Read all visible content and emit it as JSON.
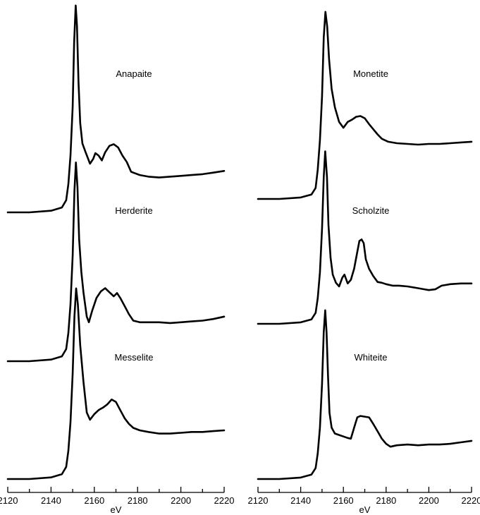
{
  "chart_data": [
    {
      "type": "line",
      "xlabel": "eV",
      "xlim": [
        2120,
        2220
      ],
      "x_ticks": [
        "2120",
        "2140",
        "2160",
        "2180",
        "2200",
        "2220"
      ],
      "grid": false,
      "series": [
        {
          "name": "Anapaite",
          "points": [
            [
              2120,
              0.0
            ],
            [
              2130,
              0.0
            ],
            [
              2140,
              0.02
            ],
            [
              2145,
              0.06
            ],
            [
              2147,
              0.15
            ],
            [
              2148,
              0.35
            ],
            [
              2149,
              0.7
            ],
            [
              2150,
              1.3
            ],
            [
              2150.7,
              2.1
            ],
            [
              2151.4,
              2.55
            ],
            [
              2152,
              2.3
            ],
            [
              2152.7,
              1.6
            ],
            [
              2153.5,
              1.1
            ],
            [
              2154.5,
              0.85
            ],
            [
              2156,
              0.74
            ],
            [
              2158,
              0.6
            ],
            [
              2159.5,
              0.66
            ],
            [
              2160.5,
              0.73
            ],
            [
              2162,
              0.7
            ],
            [
              2163.5,
              0.64
            ],
            [
              2165,
              0.74
            ],
            [
              2167,
              0.82
            ],
            [
              2169,
              0.84
            ],
            [
              2171,
              0.8
            ],
            [
              2173,
              0.7
            ],
            [
              2175,
              0.62
            ],
            [
              2177,
              0.5
            ],
            [
              2179,
              0.48
            ],
            [
              2181,
              0.46
            ],
            [
              2185,
              0.44
            ],
            [
              2190,
              0.43
            ],
            [
              2195,
              0.44
            ],
            [
              2200,
              0.45
            ],
            [
              2205,
              0.46
            ],
            [
              2210,
              0.47
            ],
            [
              2215,
              0.49
            ],
            [
              2220,
              0.51
            ]
          ]
        },
        {
          "name": "Herderite",
          "points": [
            [
              2120,
              0.0
            ],
            [
              2130,
              0.0
            ],
            [
              2140,
              0.02
            ],
            [
              2145,
              0.06
            ],
            [
              2147,
              0.15
            ],
            [
              2148,
              0.35
            ],
            [
              2149,
              0.7
            ],
            [
              2150,
              1.3
            ],
            [
              2150.8,
              2.1
            ],
            [
              2151.5,
              2.45
            ],
            [
              2152.2,
              2.15
            ],
            [
              2153,
              1.5
            ],
            [
              2154,
              1.1
            ],
            [
              2155,
              0.85
            ],
            [
              2156.5,
              0.55
            ],
            [
              2157.5,
              0.48
            ],
            [
              2159,
              0.62
            ],
            [
              2161,
              0.78
            ],
            [
              2163,
              0.86
            ],
            [
              2165,
              0.9
            ],
            [
              2167,
              0.85
            ],
            [
              2169,
              0.8
            ],
            [
              2170.5,
              0.84
            ],
            [
              2172,
              0.78
            ],
            [
              2174,
              0.68
            ],
            [
              2176,
              0.58
            ],
            [
              2178,
              0.5
            ],
            [
              2181,
              0.48
            ],
            [
              2185,
              0.48
            ],
            [
              2190,
              0.48
            ],
            [
              2195,
              0.47
            ],
            [
              2200,
              0.48
            ],
            [
              2205,
              0.49
            ],
            [
              2210,
              0.5
            ],
            [
              2215,
              0.52
            ],
            [
              2220,
              0.55
            ]
          ]
        },
        {
          "name": "Messelite",
          "points": [
            [
              2120,
              0.0
            ],
            [
              2130,
              0.0
            ],
            [
              2140,
              0.02
            ],
            [
              2145,
              0.06
            ],
            [
              2147,
              0.15
            ],
            [
              2148,
              0.35
            ],
            [
              2149,
              0.7
            ],
            [
              2150,
              1.3
            ],
            [
              2150.8,
              2.0
            ],
            [
              2151.6,
              2.35
            ],
            [
              2152.4,
              2.15
            ],
            [
              2153.5,
              1.65
            ],
            [
              2155,
              1.2
            ],
            [
              2156.5,
              0.82
            ],
            [
              2158,
              0.73
            ],
            [
              2160,
              0.8
            ],
            [
              2162,
              0.85
            ],
            [
              2164,
              0.88
            ],
            [
              2166,
              0.92
            ],
            [
              2168,
              0.98
            ],
            [
              2170,
              0.95
            ],
            [
              2172,
              0.85
            ],
            [
              2174,
              0.75
            ],
            [
              2176,
              0.68
            ],
            [
              2178,
              0.63
            ],
            [
              2181,
              0.6
            ],
            [
              2185,
              0.58
            ],
            [
              2190,
              0.56
            ],
            [
              2195,
              0.56
            ],
            [
              2200,
              0.57
            ],
            [
              2205,
              0.58
            ],
            [
              2210,
              0.58
            ],
            [
              2215,
              0.59
            ],
            [
              2220,
              0.6
            ]
          ]
        }
      ]
    },
    {
      "type": "line",
      "xlabel": "eV",
      "xlim": [
        2120,
        2220
      ],
      "x_ticks": [
        "2120",
        "2140",
        "2160",
        "2180",
        "2200",
        "2220"
      ],
      "grid": false,
      "series": [
        {
          "name": "Monetite",
          "points": [
            [
              2120,
              0.0
            ],
            [
              2130,
              0.0
            ],
            [
              2140,
              0.02
            ],
            [
              2145,
              0.06
            ],
            [
              2147,
              0.15
            ],
            [
              2148,
              0.4
            ],
            [
              2149,
              0.8
            ],
            [
              2150,
              1.4
            ],
            [
              2150.8,
              2.2
            ],
            [
              2151.6,
              2.55
            ],
            [
              2152.4,
              2.35
            ],
            [
              2153.3,
              1.9
            ],
            [
              2154.5,
              1.5
            ],
            [
              2156,
              1.25
            ],
            [
              2158,
              1.05
            ],
            [
              2160,
              0.97
            ],
            [
              2162,
              1.05
            ],
            [
              2164,
              1.08
            ],
            [
              2166,
              1.12
            ],
            [
              2168,
              1.13
            ],
            [
              2170,
              1.1
            ],
            [
              2172,
              1.02
            ],
            [
              2174,
              0.95
            ],
            [
              2176,
              0.88
            ],
            [
              2178,
              0.82
            ],
            [
              2181,
              0.78
            ],
            [
              2185,
              0.76
            ],
            [
              2190,
              0.75
            ],
            [
              2195,
              0.74
            ],
            [
              2200,
              0.75
            ],
            [
              2205,
              0.75
            ],
            [
              2210,
              0.76
            ],
            [
              2215,
              0.77
            ],
            [
              2220,
              0.78
            ]
          ]
        },
        {
          "name": "Scholzite",
          "points": [
            [
              2120,
              0.0
            ],
            [
              2130,
              0.0
            ],
            [
              2140,
              0.02
            ],
            [
              2145,
              0.06
            ],
            [
              2147,
              0.15
            ],
            [
              2148,
              0.35
            ],
            [
              2149,
              0.7
            ],
            [
              2150,
              1.3
            ],
            [
              2150.8,
              2.0
            ],
            [
              2151.5,
              2.35
            ],
            [
              2152.3,
              2.0
            ],
            [
              2153,
              1.35
            ],
            [
              2154,
              0.9
            ],
            [
              2155,
              0.67
            ],
            [
              2156.5,
              0.56
            ],
            [
              2158,
              0.51
            ],
            [
              2159.5,
              0.63
            ],
            [
              2160.5,
              0.67
            ],
            [
              2162,
              0.55
            ],
            [
              2163.5,
              0.6
            ],
            [
              2165,
              0.75
            ],
            [
              2166.5,
              0.98
            ],
            [
              2167.5,
              1.13
            ],
            [
              2168.5,
              1.15
            ],
            [
              2169.5,
              1.1
            ],
            [
              2170.5,
              0.88
            ],
            [
              2172,
              0.75
            ],
            [
              2174,
              0.65
            ],
            [
              2176,
              0.57
            ],
            [
              2178,
              0.56
            ],
            [
              2180,
              0.54
            ],
            [
              2183,
              0.52
            ],
            [
              2186,
              0.52
            ],
            [
              2190,
              0.51
            ],
            [
              2194,
              0.49
            ],
            [
              2198,
              0.47
            ],
            [
              2200,
              0.46
            ],
            [
              2203,
              0.47
            ],
            [
              2206,
              0.52
            ],
            [
              2210,
              0.54
            ],
            [
              2215,
              0.55
            ],
            [
              2220,
              0.55
            ]
          ]
        },
        {
          "name": "Whiteite",
          "points": [
            [
              2120,
              0.0
            ],
            [
              2130,
              0.0
            ],
            [
              2140,
              0.02
            ],
            [
              2145,
              0.06
            ],
            [
              2147,
              0.15
            ],
            [
              2148,
              0.35
            ],
            [
              2149,
              0.7
            ],
            [
              2150,
              1.3
            ],
            [
              2150.8,
              2.0
            ],
            [
              2151.5,
              2.3
            ],
            [
              2152.1,
              2.0
            ],
            [
              2152.8,
              1.4
            ],
            [
              2153.5,
              0.9
            ],
            [
              2154.5,
              0.7
            ],
            [
              2156,
              0.62
            ],
            [
              2158,
              0.6
            ],
            [
              2160,
              0.58
            ],
            [
              2162,
              0.56
            ],
            [
              2163.5,
              0.55
            ],
            [
              2165,
              0.7
            ],
            [
              2166.5,
              0.84
            ],
            [
              2168,
              0.86
            ],
            [
              2170,
              0.85
            ],
            [
              2172,
              0.84
            ],
            [
              2174,
              0.75
            ],
            [
              2176,
              0.65
            ],
            [
              2178,
              0.55
            ],
            [
              2180,
              0.48
            ],
            [
              2182,
              0.44
            ],
            [
              2185,
              0.46
            ],
            [
              2190,
              0.47
            ],
            [
              2195,
              0.46
            ],
            [
              2200,
              0.47
            ],
            [
              2205,
              0.47
            ],
            [
              2210,
              0.48
            ],
            [
              2215,
              0.5
            ],
            [
              2220,
              0.52
            ]
          ]
        }
      ]
    }
  ]
}
